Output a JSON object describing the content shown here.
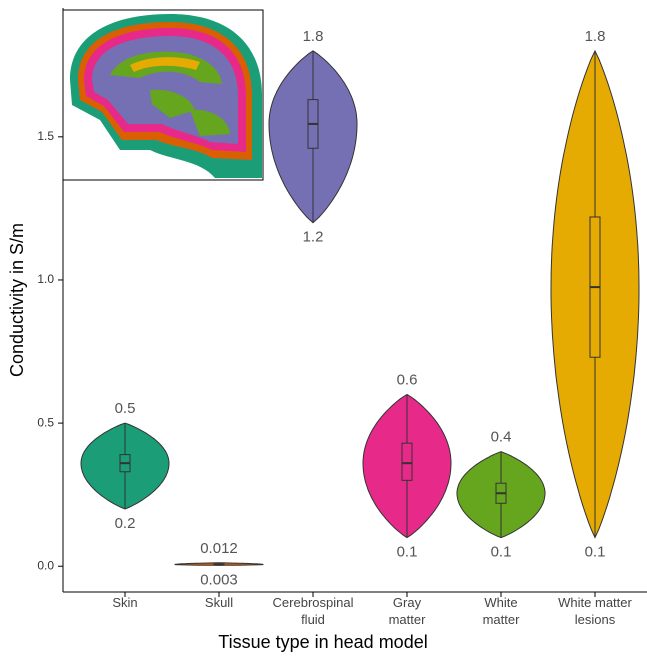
{
  "chart_data": {
    "type": "violin",
    "xlabel": "Tissue type in head model",
    "ylabel": "Conductivity in S/m",
    "categories": [
      "Skin",
      "Skull",
      "Cerebrospinal\nfluid",
      "Gray\nmatter",
      "White\nmatter",
      "White matter\nlesions"
    ],
    "colors": [
      "#1b9e77",
      "#d95f02",
      "#7570b3",
      "#e7298a",
      "#66a61e",
      "#e6ab02"
    ],
    "max": [
      0.5,
      0.012,
      1.8,
      0.6,
      0.4,
      1.8
    ],
    "min": [
      0.2,
      0.003,
      1.2,
      0.1,
      0.1,
      0.1
    ],
    "q1": [
      0.33,
      0.004,
      1.46,
      0.3,
      0.22,
      0.73
    ],
    "median": [
      0.36,
      0.006,
      1.545,
      0.36,
      0.255,
      0.975
    ],
    "q3": [
      0.39,
      0.008,
      1.63,
      0.43,
      0.29,
      1.22
    ],
    "ylim": [
      -0.09,
      1.95
    ],
    "yticks": [
      {
        "value": 0,
        "label": "0.0"
      },
      0.5,
      {
        "value": 1,
        "label": "1.0"
      },
      1.5
    ]
  }
}
